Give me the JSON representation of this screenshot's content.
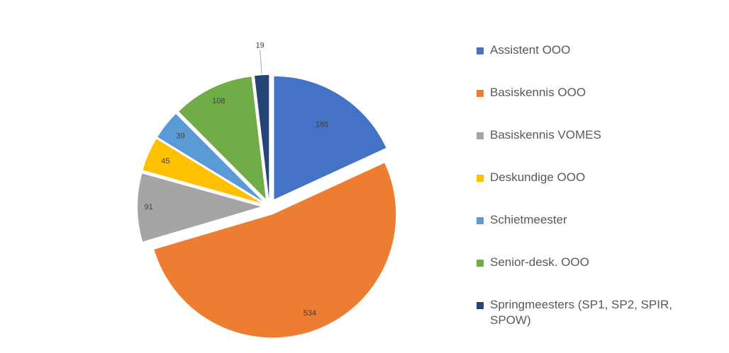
{
  "chart_data": {
    "type": "pie",
    "exploded": true,
    "legend_position": "right",
    "categories": [
      "Assistent OOO",
      "Basiskennis OOO",
      "Basiskennis VOMES",
      "Deskundige OOO",
      "Schietmeester",
      "Senior-desk. OOO",
      "Springmeesters (SP1, SP2, SPIR, SPOW)"
    ],
    "values": [
      185,
      534,
      91,
      45,
      39,
      108,
      19
    ],
    "colors": [
      "#4472C4",
      "#ED7D31",
      "#A5A5A5",
      "#FFC000",
      "#5B9BD5",
      "#70AD47",
      "#264478"
    ],
    "data_labels": [
      "185",
      "534",
      "91",
      "45",
      "39",
      "108",
      "19"
    ]
  }
}
